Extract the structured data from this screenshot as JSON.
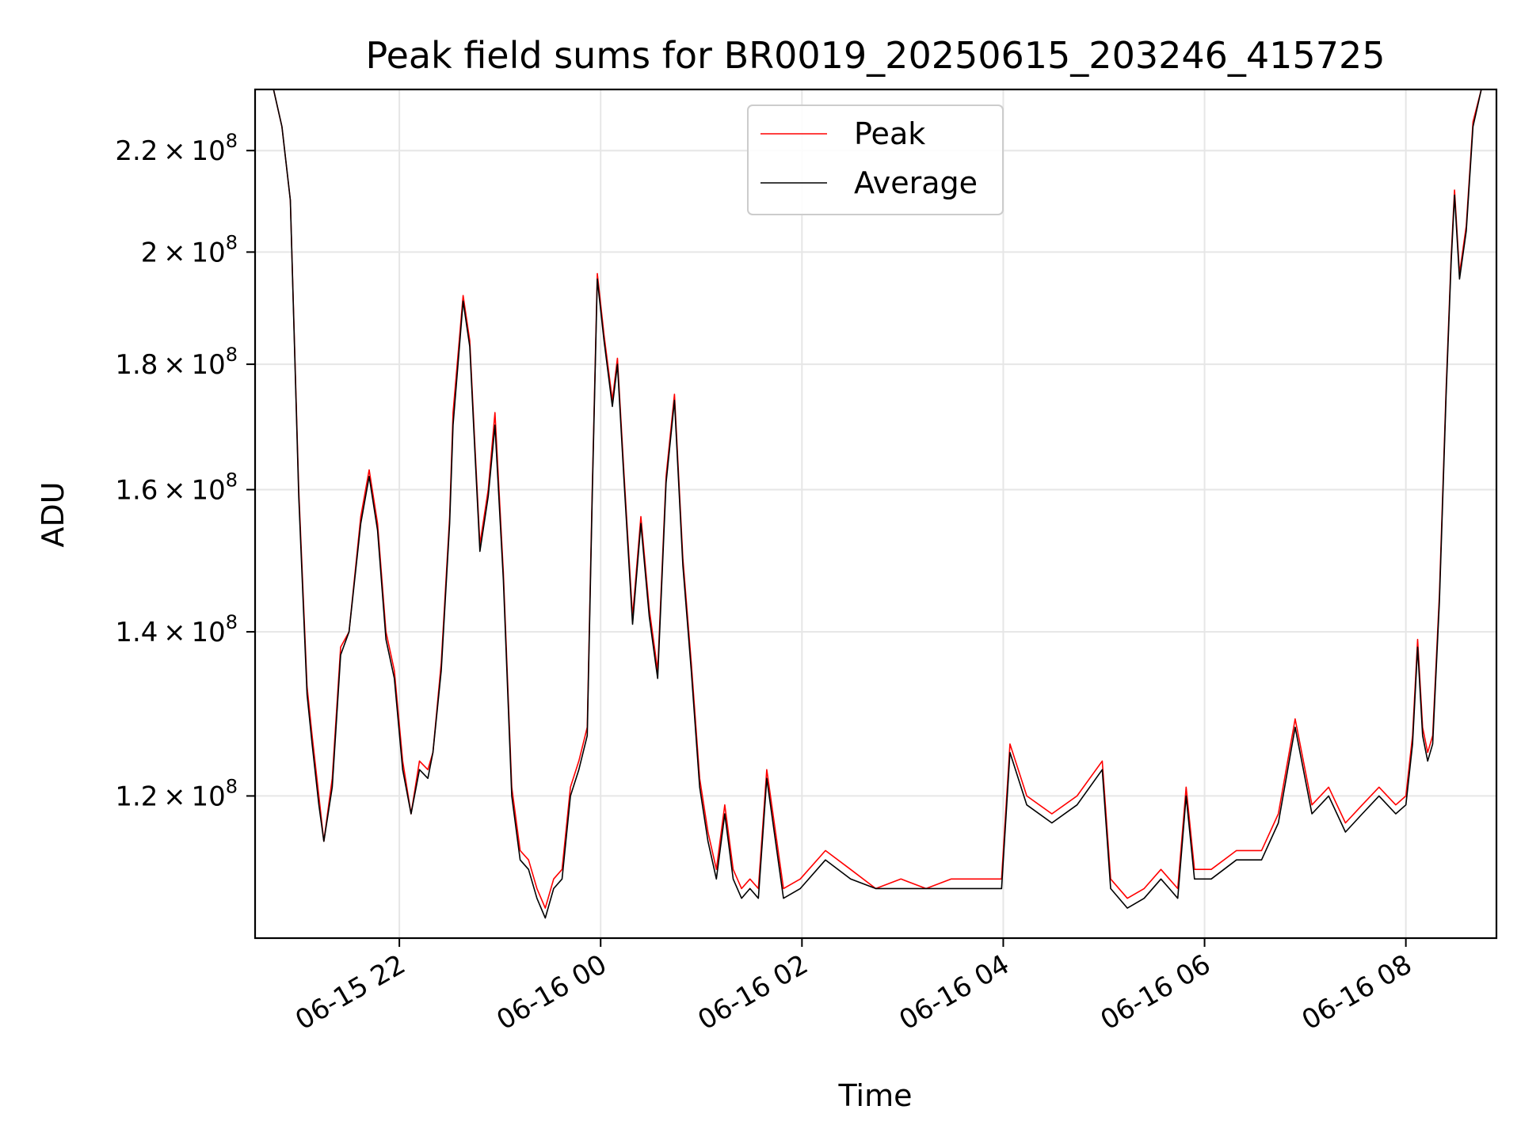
{
  "chart_data": {
    "type": "line",
    "title": "Peak field sums for BR0019_20250615_203246_415725",
    "xlabel": "Time",
    "ylabel": "ADU",
    "xlim": [
      "2025-06-15 20:34",
      "2025-06-16 08:54"
    ],
    "ylim": [
      105000000.0,
      233000000.0
    ],
    "yscale": "log",
    "grid": true,
    "legend_position": "top-center",
    "x_ticks": [
      "2025-06-15 22:00",
      "2025-06-16 00:00",
      "2025-06-16 02:00",
      "2025-06-16 04:00",
      "2025-06-16 06:00",
      "2025-06-16 08:00"
    ],
    "x_tick_labels": [
      "06-15 22",
      "06-16 00",
      "06-16 02",
      "06-16 04",
      "06-16 06",
      "06-16 08"
    ],
    "y_ticks": [
      {
        "value": 120000000.0,
        "mantissa": "1.2",
        "exponent": "8"
      },
      {
        "value": 140000000.0,
        "mantissa": "1.4",
        "exponent": "8"
      },
      {
        "value": 160000000.0,
        "mantissa": "1.6",
        "exponent": "8"
      },
      {
        "value": 180000000.0,
        "mantissa": "1.8",
        "exponent": "8"
      },
      {
        "value": 200000000.0,
        "mantissa": "2",
        "exponent": "8"
      },
      {
        "value": 220000000.0,
        "mantissa": "2.2",
        "exponent": "8"
      }
    ],
    "series": [
      {
        "name": "Peak",
        "color": "#ff0000",
        "x": [
          "2025-06-15 20:34",
          "2025-06-15 20:45",
          "2025-06-15 20:50",
          "2025-06-15 20:55",
          "2025-06-15 21:00",
          "2025-06-15 21:05",
          "2025-06-15 21:08",
          "2025-06-15 21:12",
          "2025-06-15 21:15",
          "2025-06-15 21:20",
          "2025-06-15 21:25",
          "2025-06-15 21:30",
          "2025-06-15 21:37",
          "2025-06-15 21:42",
          "2025-06-15 21:47",
          "2025-06-15 21:52",
          "2025-06-15 21:57",
          "2025-06-15 22:02",
          "2025-06-15 22:07",
          "2025-06-15 22:12",
          "2025-06-15 22:17",
          "2025-06-15 22:20",
          "2025-06-15 22:25",
          "2025-06-15 22:30",
          "2025-06-15 22:32",
          "2025-06-15 22:38",
          "2025-06-15 22:42",
          "2025-06-15 22:45",
          "2025-06-15 22:48",
          "2025-06-15 22:53",
          "2025-06-15 22:57",
          "2025-06-15 23:02",
          "2025-06-15 23:07",
          "2025-06-15 23:12",
          "2025-06-15 23:17",
          "2025-06-15 23:22",
          "2025-06-15 23:27",
          "2025-06-15 23:32",
          "2025-06-15 23:37",
          "2025-06-15 23:42",
          "2025-06-15 23:47",
          "2025-06-15 23:52",
          "2025-06-15 23:55",
          "2025-06-15 23:58",
          "2025-06-16 00:02",
          "2025-06-16 00:07",
          "2025-06-16 00:10",
          "2025-06-16 00:14",
          "2025-06-16 00:19",
          "2025-06-16 00:24",
          "2025-06-16 00:29",
          "2025-06-16 00:34",
          "2025-06-16 00:39",
          "2025-06-16 00:44",
          "2025-06-16 00:49",
          "2025-06-16 00:54",
          "2025-06-16 00:59",
          "2025-06-16 01:04",
          "2025-06-16 01:09",
          "2025-06-16 01:14",
          "2025-06-16 01:19",
          "2025-06-16 01:24",
          "2025-06-16 01:29",
          "2025-06-16 01:34",
          "2025-06-16 01:39",
          "2025-06-16 01:49",
          "2025-06-16 01:59",
          "2025-06-16 02:14",
          "2025-06-16 02:29",
          "2025-06-16 02:44",
          "2025-06-16 02:59",
          "2025-06-16 03:14",
          "2025-06-16 03:29",
          "2025-06-16 03:44",
          "2025-06-16 03:59",
          "2025-06-16 04:04",
          "2025-06-16 04:14",
          "2025-06-16 04:29",
          "2025-06-16 04:44",
          "2025-06-16 04:59",
          "2025-06-16 05:04",
          "2025-06-16 05:14",
          "2025-06-16 05:24",
          "2025-06-16 05:34",
          "2025-06-16 05:39",
          "2025-06-16 05:44",
          "2025-06-16 05:49",
          "2025-06-16 05:54",
          "2025-06-16 06:04",
          "2025-06-16 06:19",
          "2025-06-16 06:34",
          "2025-06-16 06:44",
          "2025-06-16 06:54",
          "2025-06-16 07:04",
          "2025-06-16 07:14",
          "2025-06-16 07:24",
          "2025-06-16 07:34",
          "2025-06-16 07:44",
          "2025-06-16 07:54",
          "2025-06-16 08:00",
          "2025-06-16 08:04",
          "2025-06-16 08:07",
          "2025-06-16 08:10",
          "2025-06-16 08:13",
          "2025-06-16 08:16",
          "2025-06-16 08:20",
          "2025-06-16 08:24",
          "2025-06-16 08:27",
          "2025-06-16 08:29",
          "2025-06-16 08:32",
          "2025-06-16 08:36",
          "2025-06-16 08:40",
          "2025-06-16 08:45",
          "2025-06-16 08:54"
        ],
        "y": [
          233000000.0,
          233000000.0,
          225000000.0,
          210000000.0,
          160000000.0,
          133000000.0,
          127000000.0,
          120000000.0,
          115000000.0,
          122000000.0,
          138000000.0,
          140000000.0,
          156000000.0,
          163000000.0,
          155000000.0,
          140000000.0,
          135000000.0,
          124000000.0,
          118000000.0,
          124000000.0,
          123000000.0,
          125000000.0,
          136000000.0,
          156000000.0,
          172000000.0,
          192000000.0,
          184000000.0,
          167000000.0,
          152000000.0,
          160000000.0,
          172000000.0,
          148000000.0,
          121000000.0,
          114000000.0,
          113000000.0,
          110000000.0,
          108000000.0,
          111000000.0,
          112000000.0,
          121000000.0,
          124000000.0,
          128000000.0,
          160000000.0,
          196000000.0,
          185000000.0,
          174000000.0,
          181000000.0,
          162000000.0,
          142000000.0,
          156000000.0,
          143000000.0,
          135000000.0,
          162000000.0,
          175000000.0,
          150000000.0,
          136000000.0,
          122000000.0,
          116000000.0,
          112000000.0,
          119000000.0,
          112000000.0,
          110000000.0,
          111000000.0,
          110000000.0,
          123000000.0,
          110000000.0,
          111000000.0,
          114000000.0,
          112000000.0,
          110000000.0,
          111000000.0,
          110000000.0,
          111000000.0,
          111000000.0,
          111000000.0,
          126000000.0,
          120000000.0,
          118000000.0,
          120000000.0,
          124000000.0,
          111000000.0,
          109000000.0,
          110000000.0,
          112000000.0,
          111000000.0,
          110000000.0,
          121000000.0,
          112000000.0,
          112000000.0,
          114000000.0,
          114000000.0,
          118000000.0,
          129000000.0,
          119000000.0,
          121000000.0,
          117000000.0,
          119000000.0,
          121000000.0,
          119000000.0,
          120000000.0,
          127000000.0,
          139000000.0,
          128000000.0,
          125000000.0,
          127000000.0,
          145000000.0,
          176000000.0,
          199000000.0,
          212000000.0,
          196000000.0,
          205000000.0,
          226000000.0,
          233000000.0,
          233000000.0
        ]
      },
      {
        "name": "Average",
        "color": "#000000",
        "x": [
          "2025-06-15 20:34",
          "2025-06-15 20:45",
          "2025-06-15 20:50",
          "2025-06-15 20:55",
          "2025-06-15 21:00",
          "2025-06-15 21:05",
          "2025-06-15 21:08",
          "2025-06-15 21:12",
          "2025-06-15 21:15",
          "2025-06-15 21:20",
          "2025-06-15 21:25",
          "2025-06-15 21:30",
          "2025-06-15 21:37",
          "2025-06-15 21:42",
          "2025-06-15 21:47",
          "2025-06-15 21:52",
          "2025-06-15 21:57",
          "2025-06-15 22:02",
          "2025-06-15 22:07",
          "2025-06-15 22:12",
          "2025-06-15 22:17",
          "2025-06-15 22:20",
          "2025-06-15 22:25",
          "2025-06-15 22:30",
          "2025-06-15 22:32",
          "2025-06-15 22:38",
          "2025-06-15 22:42",
          "2025-06-15 22:45",
          "2025-06-15 22:48",
          "2025-06-15 22:53",
          "2025-06-15 22:57",
          "2025-06-15 23:02",
          "2025-06-15 23:07",
          "2025-06-15 23:12",
          "2025-06-15 23:17",
          "2025-06-15 23:22",
          "2025-06-15 23:27",
          "2025-06-15 23:32",
          "2025-06-15 23:37",
          "2025-06-15 23:42",
          "2025-06-15 23:47",
          "2025-06-15 23:52",
          "2025-06-15 23:55",
          "2025-06-15 23:58",
          "2025-06-16 00:02",
          "2025-06-16 00:07",
          "2025-06-16 00:10",
          "2025-06-16 00:14",
          "2025-06-16 00:19",
          "2025-06-16 00:24",
          "2025-06-16 00:29",
          "2025-06-16 00:34",
          "2025-06-16 00:39",
          "2025-06-16 00:44",
          "2025-06-16 00:49",
          "2025-06-16 00:54",
          "2025-06-16 00:59",
          "2025-06-16 01:04",
          "2025-06-16 01:09",
          "2025-06-16 01:14",
          "2025-06-16 01:19",
          "2025-06-16 01:24",
          "2025-06-16 01:29",
          "2025-06-16 01:34",
          "2025-06-16 01:39",
          "2025-06-16 01:49",
          "2025-06-16 01:59",
          "2025-06-16 02:14",
          "2025-06-16 02:29",
          "2025-06-16 02:44",
          "2025-06-16 02:59",
          "2025-06-16 03:14",
          "2025-06-16 03:29",
          "2025-06-16 03:44",
          "2025-06-16 03:59",
          "2025-06-16 04:04",
          "2025-06-16 04:14",
          "2025-06-16 04:29",
          "2025-06-16 04:44",
          "2025-06-16 04:59",
          "2025-06-16 05:04",
          "2025-06-16 05:14",
          "2025-06-16 05:24",
          "2025-06-16 05:34",
          "2025-06-16 05:39",
          "2025-06-16 05:44",
          "2025-06-16 05:49",
          "2025-06-16 05:54",
          "2025-06-16 06:04",
          "2025-06-16 06:19",
          "2025-06-16 06:34",
          "2025-06-16 06:44",
          "2025-06-16 06:54",
          "2025-06-16 07:04",
          "2025-06-16 07:14",
          "2025-06-16 07:24",
          "2025-06-16 07:34",
          "2025-06-16 07:44",
          "2025-06-16 07:54",
          "2025-06-16 08:00",
          "2025-06-16 08:04",
          "2025-06-16 08:07",
          "2025-06-16 08:10",
          "2025-06-16 08:13",
          "2025-06-16 08:16",
          "2025-06-16 08:20",
          "2025-06-16 08:24",
          "2025-06-16 08:27",
          "2025-06-16 08:29",
          "2025-06-16 08:32",
          "2025-06-16 08:36",
          "2025-06-16 08:40",
          "2025-06-16 08:45",
          "2025-06-16 08:54"
        ],
        "y": [
          233000000.0,
          233000000.0,
          225000000.0,
          210000000.0,
          159000000.0,
          132000000.0,
          126000000.0,
          119000000.0,
          115000000.0,
          121000000.0,
          137000000.0,
          140000000.0,
          155000000.0,
          162000000.0,
          154000000.0,
          139000000.0,
          134000000.0,
          123000000.0,
          118000000.0,
          123000000.0,
          122000000.0,
          125000000.0,
          135000000.0,
          155000000.0,
          170000000.0,
          191000000.0,
          183000000.0,
          166000000.0,
          151000000.0,
          159000000.0,
          170000000.0,
          147000000.0,
          120000000.0,
          113000000.0,
          112000000.0,
          109000000.0,
          107000000.0,
          110000000.0,
          111000000.0,
          120000000.0,
          123000000.0,
          127000000.0,
          159000000.0,
          195000000.0,
          184000000.0,
          173000000.0,
          180000000.0,
          161000000.0,
          141000000.0,
          155000000.0,
          142000000.0,
          134000000.0,
          161000000.0,
          174000000.0,
          149000000.0,
          135000000.0,
          121000000.0,
          115000000.0,
          111000000.0,
          118000000.0,
          111000000.0,
          109000000.0,
          110000000.0,
          109000000.0,
          122000000.0,
          109000000.0,
          110000000.0,
          113000000.0,
          111000000.0,
          110000000.0,
          110000000.0,
          110000000.0,
          110000000.0,
          110000000.0,
          110000000.0,
          125000000.0,
          119000000.0,
          117000000.0,
          119000000.0,
          123000000.0,
          110000000.0,
          108000000.0,
          109000000.0,
          111000000.0,
          110000000.0,
          109000000.0,
          120000000.0,
          111000000.0,
          111000000.0,
          113000000.0,
          113000000.0,
          117000000.0,
          128000000.0,
          118000000.0,
          120000000.0,
          116000000.0,
          118000000.0,
          120000000.0,
          118000000.0,
          119000000.0,
          126000000.0,
          138000000.0,
          127000000.0,
          124000000.0,
          126000000.0,
          144000000.0,
          175000000.0,
          198000000.0,
          211000000.0,
          195000000.0,
          204000000.0,
          225000000.0,
          233000000.0,
          233000000.0
        ]
      }
    ]
  }
}
